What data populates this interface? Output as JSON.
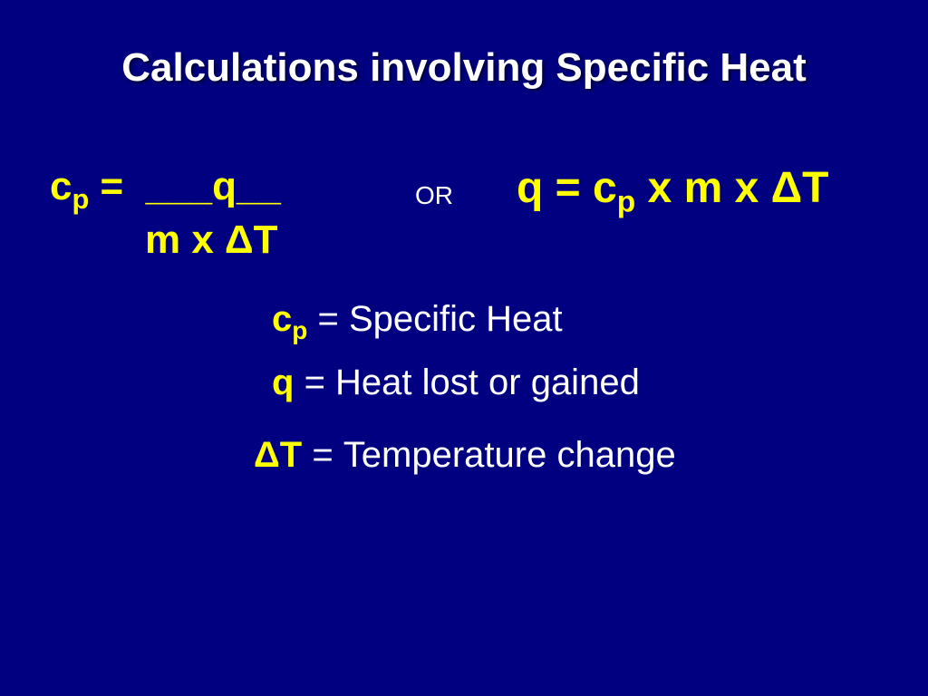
{
  "slide": {
    "background_color": "#000080",
    "title_color": "#ffffff",
    "accent_color": "#ffff00",
    "text_color": "#ffffff",
    "title_font": "Comic Sans MS",
    "formula_font": "Arial",
    "title_fontsize": 44,
    "formula_fontsize": 46,
    "def_fontsize": 40,
    "title": "Calculations involving Specific Heat",
    "formula_left_line1": "cₚ =  ___q__",
    "formula_left_line2": "m x ΔT",
    "or_label": "OR",
    "formula_right": "q = cₚ x m x ΔT",
    "def1_symbol": "cₚ",
    "def1_text": "Specific Heat",
    "def2_symbol": "q",
    "def2_text": "Heat lost or gained",
    "def3_symbol": "ΔT",
    "def3_text": "Temperature change"
  }
}
